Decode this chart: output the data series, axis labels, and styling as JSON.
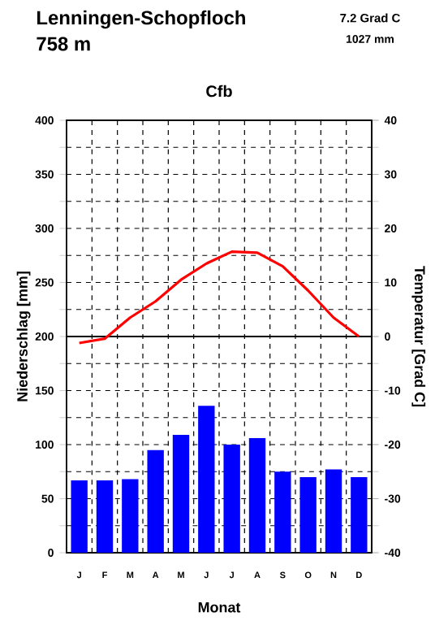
{
  "chart_data": {
    "type": "bar",
    "title": "Lenningen-Schopfloch",
    "subtitle": "758 m",
    "annotations": [
      "Cfb",
      "7.2 Grad C",
      "1027 mm"
    ],
    "xlabel": "Monat",
    "ylabel": "Niederschlag [mm]",
    "y2label": "Temperatur [Grad C]",
    "categories": [
      "J",
      "F",
      "M",
      "A",
      "M",
      "J",
      "J",
      "A",
      "S",
      "O",
      "N",
      "D"
    ],
    "series": [
      {
        "axis": "y",
        "color": "#0000ff",
        "values": [
          67,
          67,
          68,
          95,
          109,
          136,
          100,
          106,
          75,
          70,
          77,
          70
        ]
      },
      {
        "type": "line",
        "axis": "y2",
        "color": "#ff0000",
        "values": [
          -1.2,
          -0.4,
          3.5,
          6.5,
          10.5,
          13.5,
          15.7,
          15.5,
          13,
          8.5,
          3.5,
          0
        ]
      }
    ],
    "ylim": [
      0,
      400
    ],
    "yticks": [
      0,
      {
        "value": 25,
        "label": null
      },
      50,
      {
        "value": 75,
        "label": null
      },
      100,
      {
        "value": 125,
        "label": null
      },
      150,
      {
        "value": 175,
        "label": null
      },
      200,
      {
        "value": 225,
        "label": null
      },
      250,
      {
        "value": 275,
        "label": null
      },
      300,
      {
        "value": 325,
        "label": null
      },
      350,
      {
        "value": 375,
        "label": null
      },
      400
    ],
    "y2lim": [
      -40,
      40
    ],
    "y2ticks": [
      -40,
      -30,
      -20,
      -10,
      0,
      10,
      20,
      30,
      40
    ],
    "ref_lines": [
      {
        "axis": "y2",
        "value": 0,
        "color": "#000000"
      }
    ],
    "grid": true
  }
}
